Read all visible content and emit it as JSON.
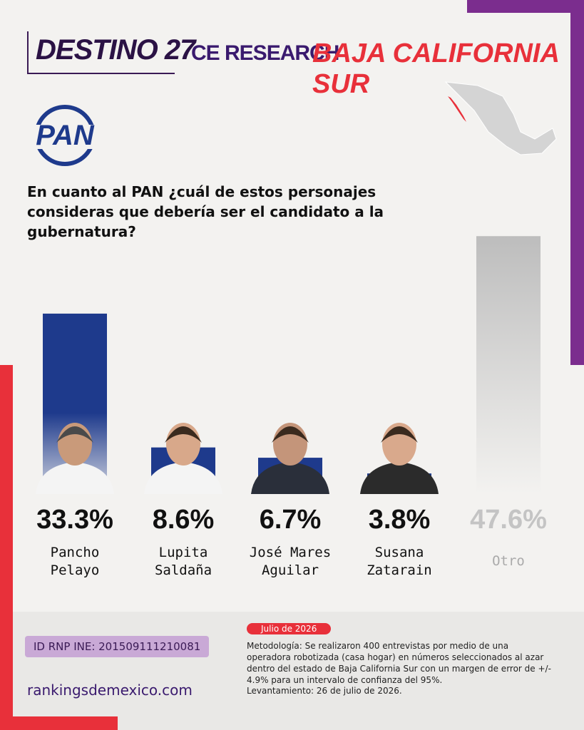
{
  "header": {
    "brand": "DESTINO 27",
    "partner": "CE RESEARCH",
    "region": "BAJA CALIFORNIA SUR",
    "party": "PAN"
  },
  "chart_data": {
    "type": "bar",
    "title": "En cuanto al PAN ¿cuál de estos personajes consideras que debería ser el candidato a la gubernatura?",
    "categories": [
      "Pancho Pelayo",
      "Lupita Saldaña",
      "José Mares Aguilar",
      "Susana Zatarain",
      "Otro"
    ],
    "values": [
      33.3,
      8.6,
      6.7,
      3.8,
      47.6
    ],
    "value_labels": [
      "33.3%",
      "8.6%",
      "6.7%",
      "3.8%",
      "47.6%"
    ],
    "colors": [
      "#1e3a8c",
      "#1e3a8c",
      "#1e3a8c",
      "#1e3a8c",
      "#bdbdbd"
    ]
  },
  "footer": {
    "registry": "ID RNP INE: 201509111210081",
    "website": "rankingsdemexico.com",
    "date": "Julio de 2026",
    "methodology": "Metodología: Se realizaron 400 entrevistas por medio de una operadora robotizada (casa hogar) en números seleccionados al azar dentro del estado de Baja California Sur con un margen de error de +/- 4.9% para un intervalo de confianza del 95%.",
    "fieldwork": "Levantamiento: 26 de julio de 2026."
  }
}
